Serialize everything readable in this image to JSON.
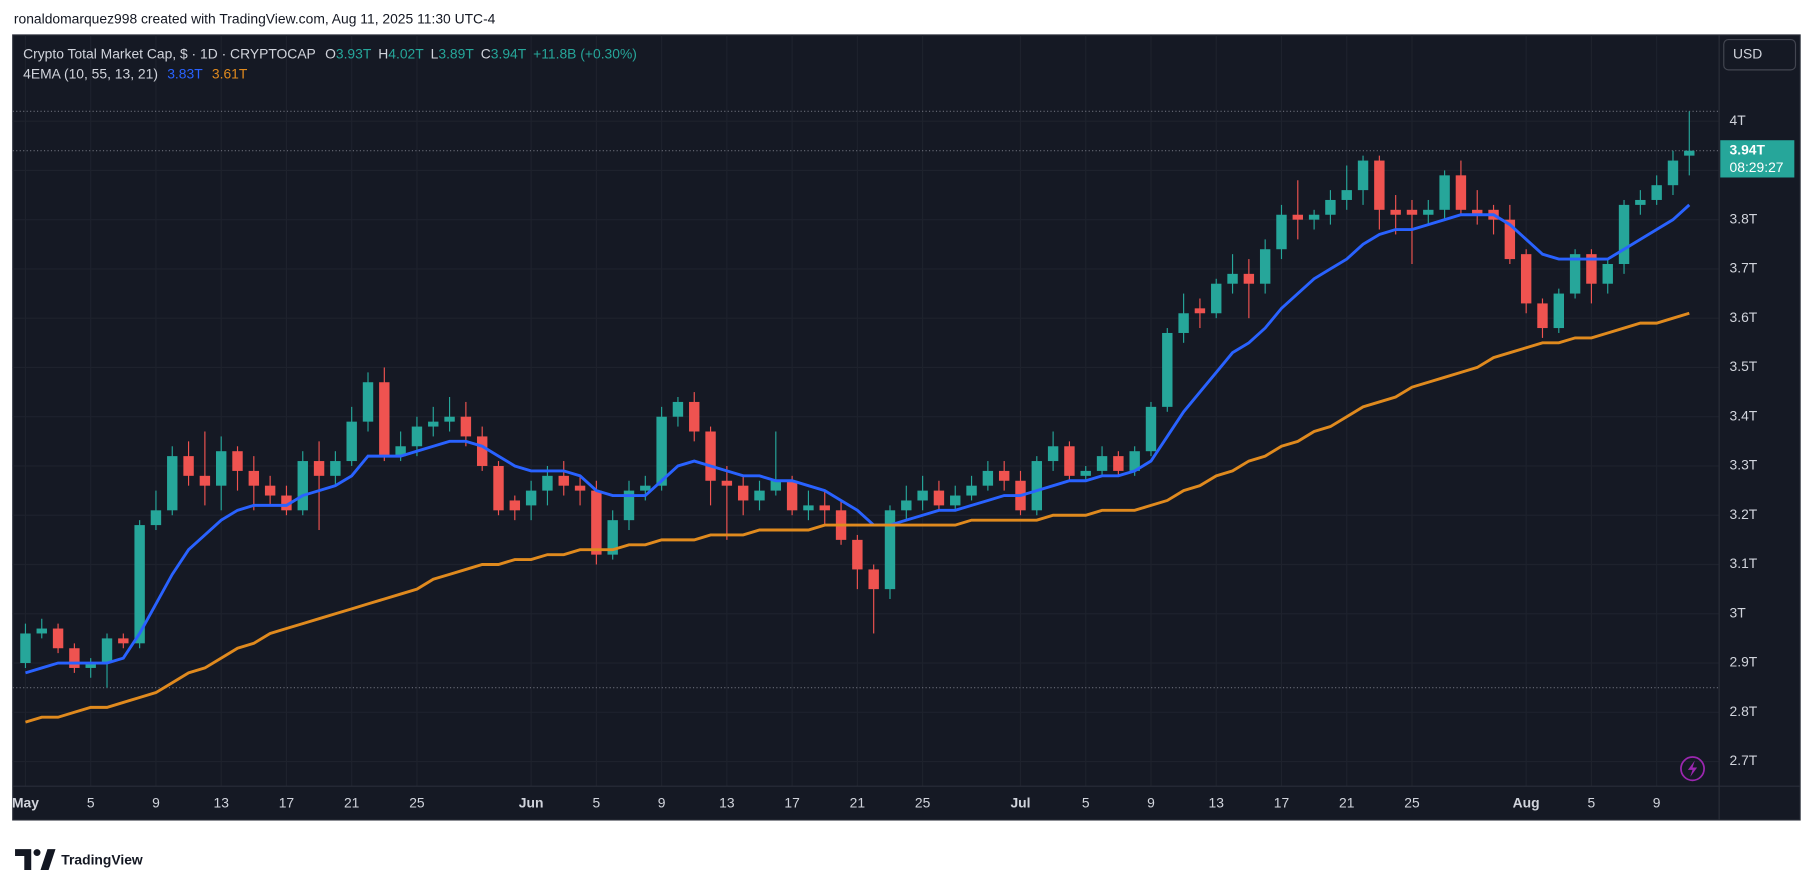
{
  "attribution": "ronaldomarquez998 created with TradingView.com, Aug 11, 2025 11:30 UTC-4",
  "brand": "TradingView",
  "currency_button": "USD",
  "chart_data": {
    "type": "candlestick",
    "title": "Crypto Total Market Cap, $ · 1D · CRYPTOCAP",
    "ohlc_legend": [
      {
        "key": "O",
        "label": "3.93T"
      },
      {
        "key": "H",
        "label": "4.02T"
      },
      {
        "key": "L",
        "label": "3.89T"
      },
      {
        "key": "C",
        "label": "3.94T"
      }
    ],
    "change_label": "+11.8B (+0.30%)",
    "indicator_label": "4EMA (10, 55, 13, 21)",
    "last_price_label": "3.94T",
    "countdown": "08:29:27",
    "up_color": "#26a69a",
    "down_color": "#ef5350",
    "x": [
      "May 1",
      "May 2",
      "May 3",
      "May 4",
      "May 5",
      "May 6",
      "May 7",
      "May 8",
      "May 9",
      "May 10",
      "May 11",
      "May 12",
      "May 13",
      "May 14",
      "May 15",
      "May 16",
      "May 17",
      "May 18",
      "May 19",
      "May 20",
      "May 21",
      "May 22",
      "May 23",
      "May 24",
      "May 25",
      "May 26",
      "May 27",
      "May 28",
      "May 29",
      "May 30",
      "May 31",
      "Jun 1",
      "Jun 2",
      "Jun 3",
      "Jun 4",
      "Jun 5",
      "Jun 6",
      "Jun 7",
      "Jun 8",
      "Jun 9",
      "Jun 10",
      "Jun 11",
      "Jun 12",
      "Jun 13",
      "Jun 14",
      "Jun 15",
      "Jun 16",
      "Jun 17",
      "Jun 18",
      "Jun 19",
      "Jun 20",
      "Jun 21",
      "Jun 22",
      "Jun 23",
      "Jun 24",
      "Jun 25",
      "Jun 26",
      "Jun 27",
      "Jun 28",
      "Jun 29",
      "Jun 30",
      "Jul 1",
      "Jul 2",
      "Jul 3",
      "Jul 4",
      "Jul 5",
      "Jul 6",
      "Jul 7",
      "Jul 8",
      "Jul 9",
      "Jul 10",
      "Jul 11",
      "Jul 12",
      "Jul 13",
      "Jul 14",
      "Jul 15",
      "Jul 16",
      "Jul 17",
      "Jul 18",
      "Jul 19",
      "Jul 20",
      "Jul 21",
      "Jul 22",
      "Jul 23",
      "Jul 24",
      "Jul 25",
      "Jul 26",
      "Jul 27",
      "Jul 28",
      "Jul 29",
      "Jul 30",
      "Jul 31",
      "Aug 1",
      "Aug 2",
      "Aug 3",
      "Aug 4",
      "Aug 5",
      "Aug 6",
      "Aug 7",
      "Aug 8",
      "Aug 9",
      "Aug 10",
      "Aug 11"
    ],
    "open": [
      2.9,
      2.96,
      2.97,
      2.93,
      2.89,
      2.9,
      2.95,
      2.94,
      3.18,
      3.21,
      3.32,
      3.28,
      3.26,
      3.33,
      3.29,
      3.26,
      3.24,
      3.21,
      3.31,
      3.28,
      3.31,
      3.39,
      3.47,
      3.32,
      3.34,
      3.38,
      3.39,
      3.4,
      3.36,
      3.3,
      3.23,
      3.22,
      3.25,
      3.28,
      3.26,
      3.25,
      3.12,
      3.19,
      3.25,
      3.26,
      3.4,
      3.43,
      3.37,
      3.27,
      3.26,
      3.23,
      3.25,
      3.27,
      3.21,
      3.22,
      3.21,
      3.15,
      3.09,
      3.05,
      3.21,
      3.23,
      3.25,
      3.22,
      3.24,
      3.26,
      3.29,
      3.27,
      3.21,
      3.31,
      3.34,
      3.28,
      3.29,
      3.32,
      3.29,
      3.33,
      3.42,
      3.57,
      3.62,
      3.61,
      3.67,
      3.69,
      3.67,
      3.74,
      3.81,
      3.8,
      3.81,
      3.84,
      3.86,
      3.92,
      3.82,
      3.82,
      3.81,
      3.82,
      3.89,
      3.82,
      3.82,
      3.8,
      3.73,
      3.63,
      3.58,
      3.65,
      3.73,
      3.67,
      3.71,
      3.83,
      3.84,
      3.87,
      3.93
    ],
    "high": [
      2.98,
      2.99,
      2.98,
      2.94,
      2.91,
      2.96,
      2.96,
      3.19,
      3.25,
      3.34,
      3.35,
      3.37,
      3.36,
      3.34,
      3.32,
      3.28,
      3.26,
      3.33,
      3.35,
      3.33,
      3.42,
      3.49,
      3.5,
      3.37,
      3.4,
      3.42,
      3.44,
      3.43,
      3.38,
      3.31,
      3.24,
      3.27,
      3.3,
      3.31,
      3.28,
      3.27,
      3.21,
      3.27,
      3.28,
      3.42,
      3.44,
      3.45,
      3.38,
      3.3,
      3.28,
      3.27,
      3.37,
      3.28,
      3.25,
      3.25,
      3.23,
      3.16,
      3.1,
      3.22,
      3.26,
      3.28,
      3.27,
      3.26,
      3.28,
      3.31,
      3.31,
      3.29,
      3.32,
      3.37,
      3.35,
      3.3,
      3.34,
      3.33,
      3.34,
      3.43,
      3.58,
      3.65,
      3.64,
      3.68,
      3.73,
      3.72,
      3.76,
      3.83,
      3.88,
      3.82,
      3.86,
      3.91,
      3.93,
      3.93,
      3.85,
      3.84,
      3.84,
      3.9,
      3.92,
      3.86,
      3.83,
      3.83,
      3.74,
      3.64,
      3.66,
      3.74,
      3.74,
      3.72,
      3.84,
      3.86,
      3.89,
      3.94,
      4.02
    ],
    "low": [
      2.89,
      2.95,
      2.92,
      2.88,
      2.87,
      2.85,
      2.93,
      2.93,
      3.17,
      3.2,
      3.26,
      3.22,
      3.21,
      3.25,
      3.21,
      3.22,
      3.2,
      3.2,
      3.17,
      3.26,
      3.3,
      3.37,
      3.31,
      3.31,
      3.32,
      3.36,
      3.37,
      3.34,
      3.29,
      3.2,
      3.19,
      3.19,
      3.22,
      3.24,
      3.22,
      3.1,
      3.11,
      3.17,
      3.23,
      3.25,
      3.38,
      3.35,
      3.22,
      3.15,
      3.2,
      3.21,
      3.24,
      3.2,
      3.19,
      3.18,
      3.14,
      3.05,
      2.96,
      3.03,
      3.19,
      3.21,
      3.21,
      3.21,
      3.23,
      3.25,
      3.25,
      3.2,
      3.2,
      3.29,
      3.27,
      3.27,
      3.28,
      3.28,
      3.28,
      3.32,
      3.41,
      3.55,
      3.58,
      3.6,
      3.65,
      3.6,
      3.65,
      3.72,
      3.76,
      3.78,
      3.79,
      3.82,
      3.83,
      3.78,
      3.77,
      3.71,
      3.79,
      3.8,
      3.81,
      3.79,
      3.77,
      3.71,
      3.61,
      3.56,
      3.57,
      3.64,
      3.63,
      3.65,
      3.69,
      3.81,
      3.83,
      3.85,
      3.89
    ],
    "close": [
      2.96,
      2.97,
      2.93,
      2.89,
      2.9,
      2.95,
      2.94,
      3.18,
      3.21,
      3.32,
      3.28,
      3.26,
      3.33,
      3.29,
      3.26,
      3.24,
      3.21,
      3.31,
      3.28,
      3.31,
      3.39,
      3.47,
      3.32,
      3.34,
      3.38,
      3.39,
      3.4,
      3.36,
      3.3,
      3.21,
      3.21,
      3.25,
      3.28,
      3.26,
      3.25,
      3.12,
      3.19,
      3.25,
      3.26,
      3.4,
      3.43,
      3.37,
      3.27,
      3.26,
      3.23,
      3.25,
      3.27,
      3.21,
      3.22,
      3.21,
      3.15,
      3.09,
      3.05,
      3.21,
      3.23,
      3.25,
      3.22,
      3.24,
      3.26,
      3.29,
      3.27,
      3.21,
      3.31,
      3.34,
      3.28,
      3.29,
      3.32,
      3.29,
      3.33,
      3.42,
      3.57,
      3.61,
      3.61,
      3.67,
      3.69,
      3.67,
      3.74,
      3.81,
      3.8,
      3.81,
      3.84,
      3.86,
      3.92,
      3.82,
      3.81,
      3.81,
      3.82,
      3.89,
      3.82,
      3.81,
      3.8,
      3.72,
      3.63,
      3.58,
      3.65,
      3.73,
      3.67,
      3.71,
      3.83,
      3.84,
      3.87,
      3.92,
      3.94
    ],
    "series": [
      {
        "color": "#2962ff",
        "value_label": "3.83T",
        "values": [
          2.88,
          2.89,
          2.9,
          2.9,
          2.9,
          2.9,
          2.91,
          2.96,
          3.02,
          3.08,
          3.13,
          3.16,
          3.19,
          3.21,
          3.22,
          3.22,
          3.22,
          3.24,
          3.25,
          3.26,
          3.28,
          3.32,
          3.32,
          3.32,
          3.33,
          3.34,
          3.35,
          3.35,
          3.34,
          3.32,
          3.3,
          3.29,
          3.29,
          3.29,
          3.28,
          3.25,
          3.24,
          3.24,
          3.24,
          3.27,
          3.3,
          3.31,
          3.3,
          3.29,
          3.28,
          3.28,
          3.27,
          3.27,
          3.26,
          3.25,
          3.23,
          3.21,
          3.18,
          3.18,
          3.19,
          3.2,
          3.21,
          3.21,
          3.22,
          3.23,
          3.24,
          3.24,
          3.25,
          3.26,
          3.27,
          3.27,
          3.28,
          3.28,
          3.29,
          3.31,
          3.36,
          3.41,
          3.45,
          3.49,
          3.53,
          3.55,
          3.58,
          3.62,
          3.65,
          3.68,
          3.7,
          3.72,
          3.75,
          3.77,
          3.78,
          3.78,
          3.79,
          3.8,
          3.81,
          3.81,
          3.81,
          3.79,
          3.76,
          3.73,
          3.72,
          3.72,
          3.72,
          3.72,
          3.74,
          3.76,
          3.78,
          3.8,
          3.83
        ]
      },
      {
        "color": "#e08a1e",
        "value_label": "3.61T",
        "values": [
          2.78,
          2.79,
          2.79,
          2.8,
          2.81,
          2.81,
          2.82,
          2.83,
          2.84,
          2.86,
          2.88,
          2.89,
          2.91,
          2.93,
          2.94,
          2.96,
          2.97,
          2.98,
          2.99,
          3.0,
          3.01,
          3.02,
          3.03,
          3.04,
          3.05,
          3.07,
          3.08,
          3.09,
          3.1,
          3.1,
          3.11,
          3.11,
          3.12,
          3.12,
          3.13,
          3.13,
          3.13,
          3.14,
          3.14,
          3.15,
          3.15,
          3.15,
          3.16,
          3.16,
          3.16,
          3.17,
          3.17,
          3.17,
          3.17,
          3.18,
          3.18,
          3.18,
          3.18,
          3.18,
          3.18,
          3.18,
          3.18,
          3.18,
          3.19,
          3.19,
          3.19,
          3.19,
          3.19,
          3.2,
          3.2,
          3.2,
          3.21,
          3.21,
          3.21,
          3.22,
          3.23,
          3.25,
          3.26,
          3.28,
          3.29,
          3.31,
          3.32,
          3.34,
          3.35,
          3.37,
          3.38,
          3.4,
          3.42,
          3.43,
          3.44,
          3.46,
          3.47,
          3.48,
          3.49,
          3.5,
          3.52,
          3.53,
          3.54,
          3.55,
          3.55,
          3.56,
          3.56,
          3.57,
          3.58,
          3.59,
          3.59,
          3.6,
          3.61
        ]
      }
    ],
    "ylim": [
      2.65,
      4.175
    ],
    "yticks": [
      {
        "value": 2.7,
        "label": "2.7T"
      },
      {
        "value": 2.8,
        "label": "2.8T"
      },
      {
        "value": 2.9,
        "label": "2.9T"
      },
      {
        "value": 3,
        "label": "3T"
      },
      {
        "value": 3.1,
        "label": "3.1T"
      },
      {
        "value": 3.2,
        "label": "3.2T"
      },
      {
        "value": 3.3,
        "label": "3.3T"
      },
      {
        "value": 3.4,
        "label": "3.4T"
      },
      {
        "value": 3.5,
        "label": "3.5T"
      },
      {
        "value": 3.6,
        "label": "3.6T"
      },
      {
        "value": 3.7,
        "label": "3.7T"
      },
      {
        "value": 3.8,
        "label": "3.8T"
      },
      {
        "value": 3.9,
        "label": "3.9T"
      },
      {
        "value": 4,
        "label": "4T"
      }
    ],
    "xticks": [
      {
        "value": "May 1",
        "label": "May"
      },
      {
        "value": "May 5",
        "label": "5"
      },
      {
        "value": "May 9",
        "label": "9"
      },
      {
        "value": "May 13",
        "label": "13"
      },
      {
        "value": "May 17",
        "label": "17"
      },
      {
        "value": "May 21",
        "label": "21"
      },
      {
        "value": "May 25",
        "label": "25"
      },
      {
        "value": "Jun 1",
        "label": "Jun"
      },
      {
        "value": "Jun 5",
        "label": "5"
      },
      {
        "value": "Jun 9",
        "label": "9"
      },
      {
        "value": "Jun 13",
        "label": "13"
      },
      {
        "value": "Jun 17",
        "label": "17"
      },
      {
        "value": "Jun 21",
        "label": "21"
      },
      {
        "value": "Jun 25",
        "label": "25"
      },
      {
        "value": "Jul 1",
        "label": "Jul"
      },
      {
        "value": "Jul 5",
        "label": "5"
      },
      {
        "value": "Jul 9",
        "label": "9"
      },
      {
        "value": "Jul 13",
        "label": "13"
      },
      {
        "value": "Jul 17",
        "label": "17"
      },
      {
        "value": "Jul 21",
        "label": "21"
      },
      {
        "value": "Jul 25",
        "label": "25"
      },
      {
        "value": "Aug 1",
        "label": "Aug"
      },
      {
        "value": "Aug 5",
        "label": "5"
      },
      {
        "value": "Aug 9",
        "label": "9"
      }
    ],
    "grid": true
  }
}
